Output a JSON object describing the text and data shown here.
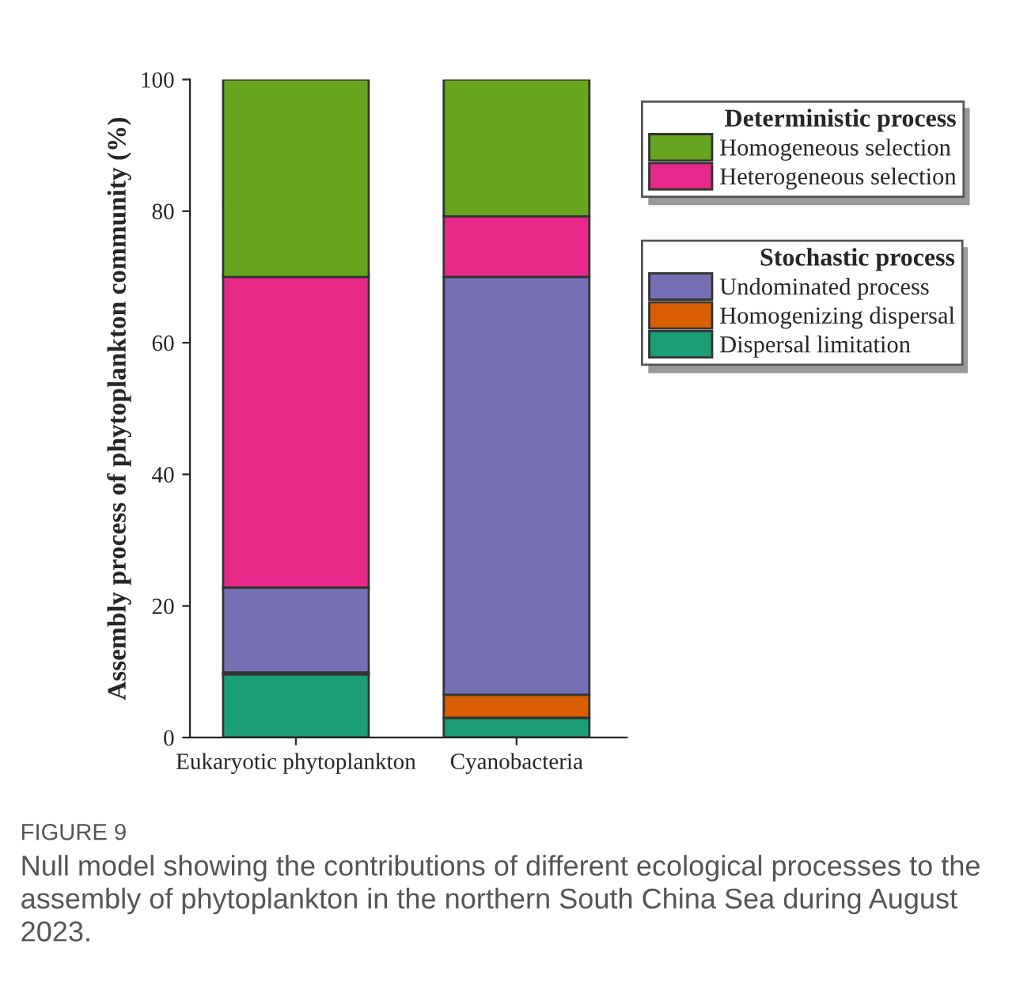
{
  "chart_data": {
    "type": "bar",
    "stacked": true,
    "ylabel": "Assembly process of phytoplankton community (%)",
    "categories": [
      "Eukaryotic phytoplankton",
      "Cyanobacteria"
    ],
    "series": [
      {
        "name": "Dispersal limitation",
        "color": "#1b9e77",
        "values": [
          9.6,
          3.0
        ]
      },
      {
        "name": "Homogenizing dispersal",
        "color": "#d95f02",
        "values": [
          0.3,
          3.5
        ]
      },
      {
        "name": "Undominated process",
        "color": "#7570b3",
        "values": [
          12.9,
          63.5
        ]
      },
      {
        "name": "Heterogeneous selection",
        "color": "#e7298a",
        "values": [
          47.2,
          9.2
        ]
      },
      {
        "name": "Homogeneous selection",
        "color": "#66a61e",
        "values": [
          30.0,
          20.8
        ]
      }
    ],
    "legend_title": [
      "Deterministic process",
      "Stochastic process"
    ],
    "legend": "top right",
    "ylim": [
      0,
      100
    ],
    "yticks": [
      0,
      20,
      40,
      60,
      80,
      100
    ],
    "grid": false,
    "annotations": [
      "FIGURE 9",
      "Null model showing the contributions of different ecological processes to the assembly of phytoplankton in the northern South China Sea during August 2023."
    ]
  }
}
